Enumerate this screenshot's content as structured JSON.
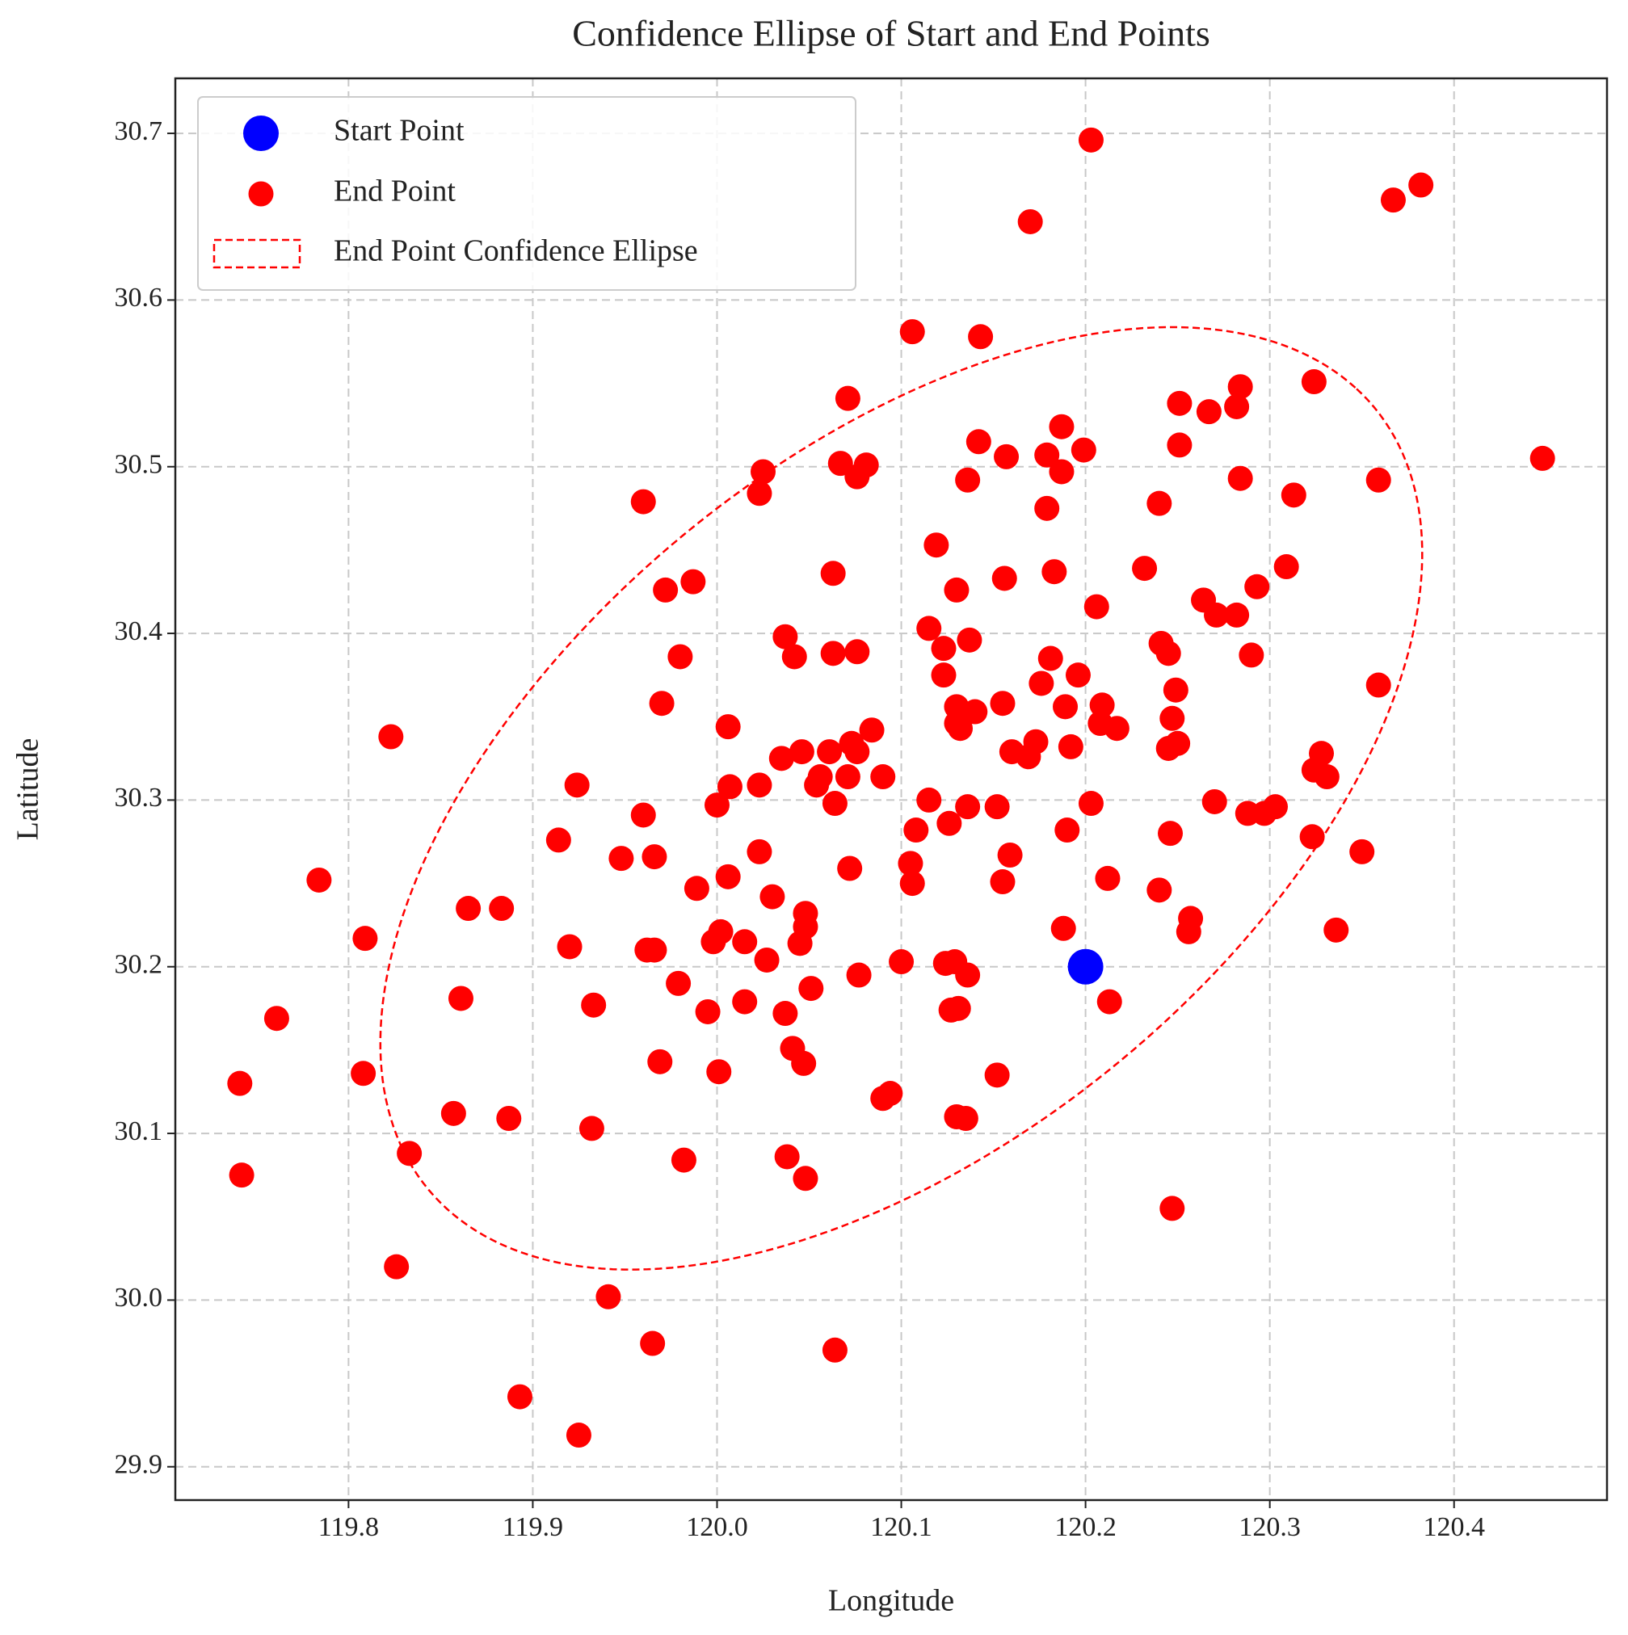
{
  "chart_data": {
    "type": "scatter",
    "title": "Confidence Ellipse of Start and End Points",
    "x_label": "Longitude",
    "y_label": "Latitude",
    "xlim": [
      119.706,
      120.483
    ],
    "ylim": [
      29.88,
      30.733
    ],
    "xticks": [
      119.8,
      119.9,
      {
        "value": 120,
        "label": "120.0"
      },
      120.1,
      120.2,
      120.3,
      120.4
    ],
    "yticks": [
      29.9,
      {
        "value": 30,
        "label": "30.0"
      },
      30.1,
      30.2,
      30.3,
      30.4,
      30.5,
      30.6,
      30.7
    ],
    "grid": true,
    "legend": "upper left",
    "series": [
      {
        "name": "Start Point",
        "color": "#0000ff",
        "x": [
          120.2
        ],
        "y": [
          30.2
        ]
      },
      {
        "name": "End Point",
        "color": "#ff0000",
        "x": [
          120.203,
          120.367,
          120.382,
          120.17,
          120.106,
          120.143,
          120.071,
          120.324,
          120.284,
          120.282,
          120.267,
          120.251,
          120.187,
          120.251,
          120.142,
          120.157,
          120.179,
          120.199,
          120.187,
          120.025,
          120.023,
          120.067,
          120.081,
          120.076,
          120.136,
          120.284,
          120.359,
          120.448,
          119.96,
          120.24,
          120.179,
          120.313,
          120.119,
          120.232,
          120.183,
          120.309,
          120.063,
          120.156,
          119.987,
          119.972,
          120.13,
          120.206,
          120.293,
          120.264,
          120.271,
          120.282,
          120.115,
          120.037,
          120.137,
          120.241,
          120.245,
          120.123,
          120.042,
          120.063,
          120.076,
          119.98,
          120.181,
          120.29,
          120.196,
          120.123,
          120.176,
          120.359,
          120.249,
          119.97,
          120.209,
          120.155,
          120.13,
          120.14,
          120.189,
          120.13,
          120.208,
          120.217,
          120.132,
          120.247,
          120.006,
          120.084,
          119.823,
          120.173,
          120.073,
          120.061,
          120.046,
          120.076,
          120.25,
          120.245,
          120.192,
          120.16,
          120.169,
          120.328,
          120.035,
          120.324,
          120.331,
          120.056,
          120.071,
          120.09,
          119.924,
          120.007,
          120.023,
          120.054,
          120.115,
          120.27,
          120.203,
          120.0,
          120.064,
          120.136,
          120.152,
          120.303,
          120.288,
          120.297,
          119.96,
          120.126,
          120.108,
          120.19,
          120.246,
          119.914,
          120.323,
          120.35,
          120.023,
          120.159,
          119.948,
          119.966,
          120.105,
          120.072,
          119.784,
          120.006,
          120.212,
          120.106,
          120.155,
          119.989,
          120.24,
          120.03,
          119.865,
          119.883,
          120.048,
          120.257,
          120.048,
          120.188,
          120.256,
          120.336,
          120.002,
          119.809,
          120.045,
          119.998,
          120.015,
          119.92,
          119.962,
          119.966,
          120.027,
          120.1,
          120.129,
          120.124,
          120.136,
          120.077,
          119.979,
          120.051,
          119.861,
          120.015,
          120.213,
          119.933,
          120.131,
          120.127,
          119.995,
          120.037,
          119.761,
          120.041,
          120.047,
          119.969,
          119.808,
          120.001,
          120.152,
          119.741,
          120.094,
          120.09,
          119.857,
          120.13,
          120.135,
          119.887,
          119.932,
          119.833,
          120.038,
          119.982,
          119.742,
          120.048,
          120.247,
          119.826,
          119.941,
          119.965,
          120.064,
          119.893,
          119.925
        ],
        "y": [
          30.696,
          30.66,
          30.669,
          30.647,
          30.581,
          30.578,
          30.541,
          30.551,
          30.548,
          30.536,
          30.533,
          30.538,
          30.524,
          30.513,
          30.515,
          30.506,
          30.507,
          30.51,
          30.497,
          30.497,
          30.484,
          30.502,
          30.501,
          30.494,
          30.492,
          30.493,
          30.492,
          30.505,
          30.479,
          30.478,
          30.475,
          30.483,
          30.453,
          30.439,
          30.437,
          30.44,
          30.436,
          30.433,
          30.431,
          30.426,
          30.426,
          30.416,
          30.428,
          30.42,
          30.411,
          30.411,
          30.403,
          30.398,
          30.396,
          30.394,
          30.388,
          30.391,
          30.386,
          30.388,
          30.389,
          30.386,
          30.385,
          30.387,
          30.375,
          30.375,
          30.37,
          30.369,
          30.366,
          30.358,
          30.357,
          30.358,
          30.356,
          30.353,
          30.356,
          30.346,
          30.346,
          30.343,
          30.343,
          30.349,
          30.344,
          30.342,
          30.338,
          30.335,
          30.334,
          30.329,
          30.329,
          30.329,
          30.334,
          30.331,
          30.332,
          30.329,
          30.326,
          30.328,
          30.325,
          30.318,
          30.314,
          30.314,
          30.314,
          30.314,
          30.309,
          30.308,
          30.309,
          30.309,
          30.3,
          30.299,
          30.298,
          30.297,
          30.298,
          30.296,
          30.296,
          30.296,
          30.292,
          30.292,
          30.291,
          30.286,
          30.282,
          30.282,
          30.28,
          30.276,
          30.278,
          30.269,
          30.269,
          30.267,
          30.265,
          30.266,
          30.262,
          30.259,
          30.252,
          30.254,
          30.253,
          30.25,
          30.251,
          30.247,
          30.246,
          30.242,
          30.235,
          30.235,
          30.232,
          30.229,
          30.224,
          30.223,
          30.221,
          30.222,
          30.221,
          30.217,
          30.214,
          30.215,
          30.215,
          30.212,
          30.21,
          30.21,
          30.204,
          30.203,
          30.203,
          30.202,
          30.195,
          30.195,
          30.19,
          30.187,
          30.181,
          30.179,
          30.179,
          30.177,
          30.175,
          30.174,
          30.173,
          30.172,
          30.169,
          30.151,
          30.142,
          30.143,
          30.136,
          30.137,
          30.135,
          30.13,
          30.124,
          30.121,
          30.112,
          30.11,
          30.109,
          30.109,
          30.103,
          30.088,
          30.086,
          30.084,
          30.075,
          30.073,
          30.055,
          30.02,
          30.002,
          29.974,
          29.97,
          29.942,
          29.919
        ]
      }
    ],
    "ellipse": {
      "name": "End Point Confidence Ellipse",
      "color": "#ff0000",
      "center": [
        120.1,
        30.301
      ],
      "width": 0.697,
      "height": 0.392,
      "angle": 45
    }
  }
}
